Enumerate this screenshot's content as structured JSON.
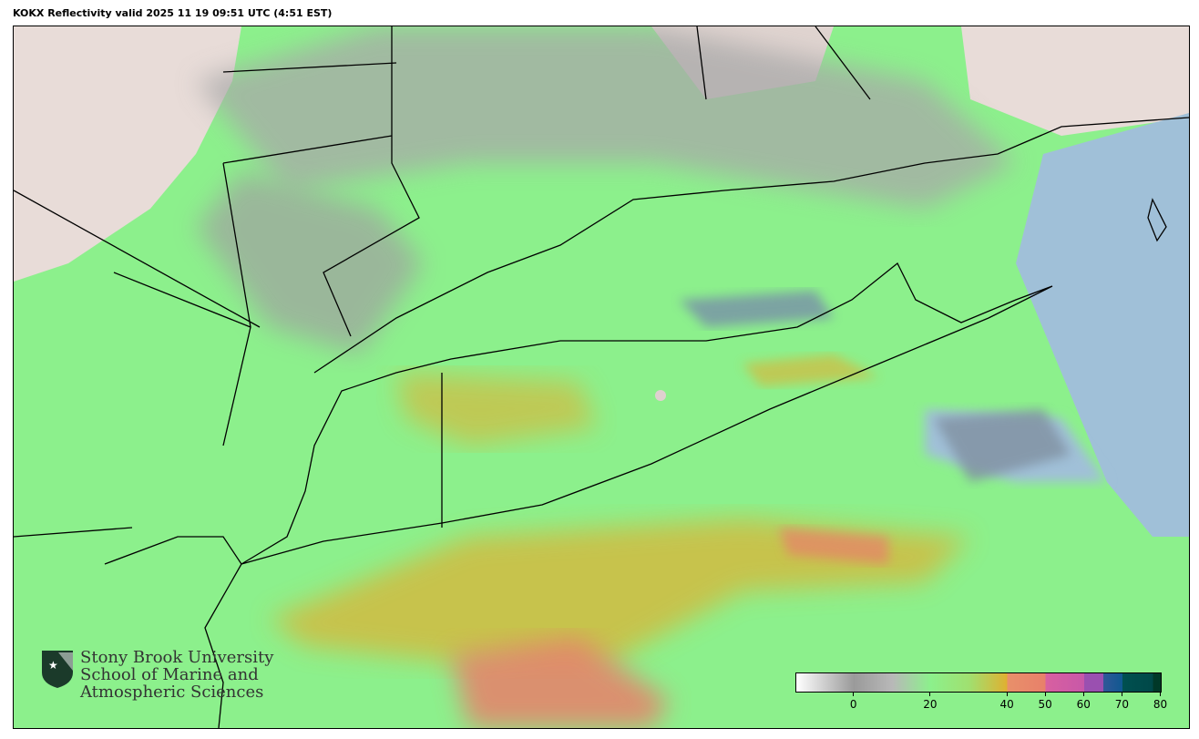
{
  "title": "KOKX Reflectivity valid 2025 11 19 09:51 UTC (4:51 EST)",
  "map": {
    "region": "Long Island / New York City / Southern New England",
    "radar_site": "KOKX",
    "product": "Reflectivity"
  },
  "colorbar": {
    "min": -15,
    "max": 80,
    "ticks": [
      0,
      20,
      40,
      50,
      60,
      70,
      80
    ],
    "stops": [
      {
        "v": -15,
        "c": "#ffffff"
      },
      {
        "v": 0,
        "c": "#9a9a9a"
      },
      {
        "v": 10,
        "c": "#b8b8b8"
      },
      {
        "v": 20,
        "c": "#8cf08c"
      },
      {
        "v": 30,
        "c": "#a0e070"
      },
      {
        "v": 40,
        "c": "#e0b030"
      },
      {
        "v": 40.01,
        "c": "#e8906a"
      },
      {
        "v": 50,
        "c": "#e8806a"
      },
      {
        "v": 50.01,
        "c": "#d860a0"
      },
      {
        "v": 60,
        "c": "#c858a8"
      },
      {
        "v": 60.01,
        "c": "#9a50b0"
      },
      {
        "v": 65,
        "c": "#9a50b0"
      },
      {
        "v": 65.01,
        "c": "#305898"
      },
      {
        "v": 70,
        "c": "#105890"
      },
      {
        "v": 70.01,
        "c": "#005050"
      },
      {
        "v": 78,
        "c": "#004848"
      },
      {
        "v": 78.01,
        "c": "#003828"
      },
      {
        "v": 80,
        "c": "#003828"
      }
    ]
  },
  "logo": {
    "line1": "Stony Brook University",
    "line2": "School of Marine and",
    "line3": "Atmospheric Sciences"
  },
  "colors": {
    "echo_light": "#8cf08c",
    "echo_moderate": "#e0b030",
    "echo_heavy": "#e8806a",
    "ocean": "#a0c0d8",
    "land": "#e8dcd8"
  }
}
